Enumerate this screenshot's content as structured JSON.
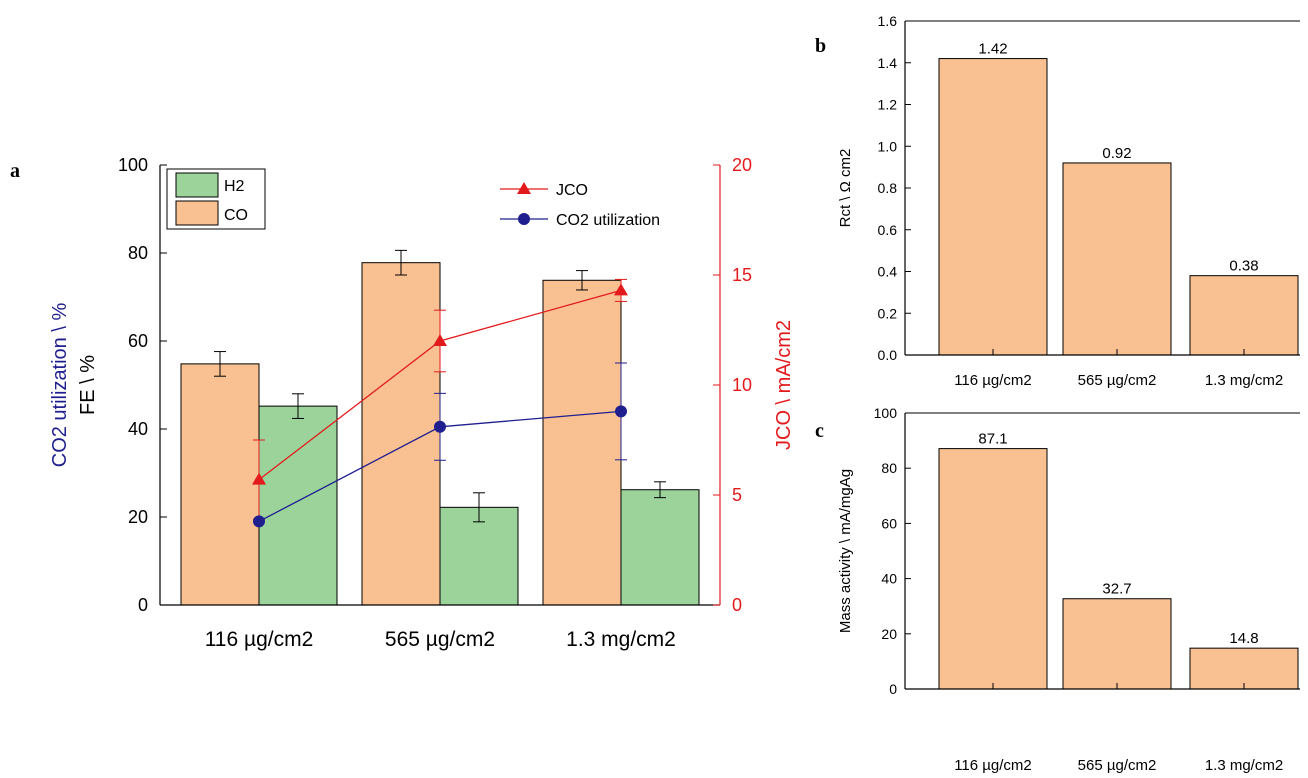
{
  "chart_data": [
    {
      "panel": "a",
      "type": "bar",
      "categories": [
        "116 µg/cm2",
        "565 µg/cm2",
        "1.3 mg/cm2"
      ],
      "ylabel_left_1": "CO2 utilization \\ %",
      "ylabel_left_2": "FE \\ %",
      "ylabel_right": "JCO \\ mA/cm2",
      "ylim_left": [
        0,
        100
      ],
      "ylim_right": [
        0,
        20
      ],
      "yticks_left": [
        0,
        20,
        40,
        60,
        80,
        100
      ],
      "yticks_right": [
        0,
        5,
        10,
        15,
        20
      ],
      "bar_series": [
        {
          "name": "CO",
          "color": "#f9c192",
          "values": [
            54.8,
            77.8,
            73.8
          ],
          "errors": [
            2.8,
            2.8,
            2.2
          ]
        },
        {
          "name": "H2",
          "color": "#9bd39b",
          "values": [
            45.2,
            22.2,
            26.2
          ],
          "errors": [
            2.8,
            3.3,
            1.8
          ]
        }
      ],
      "line_series": [
        {
          "name": "JCO",
          "axis": "right",
          "color": "#e31a1c",
          "marker": "triangle",
          "values": [
            5.7,
            12.0,
            14.3
          ],
          "errors": [
            1.8,
            1.4,
            0.5
          ]
        },
        {
          "name": "CO2 utilization",
          "axis": "left",
          "color": "#1f1f8f",
          "marker": "circle",
          "values": [
            19.0,
            40.5,
            44.0
          ],
          "errors": [
            0,
            7.6,
            11.0
          ]
        }
      ],
      "legend": {
        "placement": "top"
      }
    },
    {
      "panel": "b",
      "type": "bar",
      "categories": [
        "116 µg/cm2",
        "565 µg/cm2",
        "1.3 mg/cm2"
      ],
      "values": [
        1.42,
        0.92,
        0.38
      ],
      "labels": [
        "1.42",
        "0.92",
        "0.38"
      ],
      "ylabel": "Rct \\ Ω cm2",
      "ylim": [
        0,
        1.6
      ],
      "yticks": [
        "0.0",
        "0.2",
        "0.4",
        "0.6",
        "0.8",
        "1.0",
        "1.2",
        "1.4",
        "1.6"
      ],
      "color": "#f9c192"
    },
    {
      "panel": "c",
      "type": "bar",
      "categories": [
        "116 µg/cm2",
        "565 µg/cm2",
        "1.3 mg/cm2"
      ],
      "values": [
        87.1,
        32.7,
        14.8
      ],
      "labels": [
        "87.1",
        "32.7",
        "14.8"
      ],
      "ylabel": "Mass activity \\ mA/mgAg",
      "ylim": [
        0,
        100
      ],
      "yticks": [
        0,
        20,
        40,
        60,
        80,
        100
      ],
      "color": "#f9c192"
    }
  ],
  "panel_letters": {
    "a": "a",
    "b": "b",
    "c": "c"
  },
  "colors": {
    "co_bar": "#f9c192",
    "h2_bar": "#9bd39b",
    "jco": "#e31a1c",
    "util": "#1f1f8f",
    "axis": "#000000"
  }
}
